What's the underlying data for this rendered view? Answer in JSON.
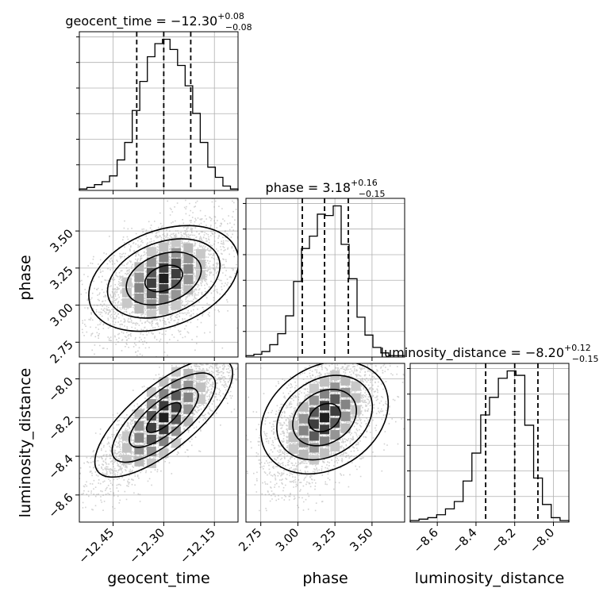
{
  "chart_data": {
    "type": "corner",
    "parameters": [
      {
        "name": "geocent_time",
        "title_prefix": "geocent_time = ",
        "median": "−12.30",
        "err_plus": "+0.08",
        "err_minus": "−0.08",
        "range": [
          -12.55,
          -12.08
        ],
        "ticks": [
          -12.45,
          -12.3,
          -12.15
        ],
        "tick_labels": [
          "−12.45",
          "−12.30",
          "−12.15"
        ],
        "quantiles": [
          -12.38,
          -12.3,
          -12.22
        ],
        "hist": [
          1,
          2,
          4,
          6,
          10,
          21,
          33,
          55,
          75,
          92,
          101,
          104,
          97,
          86,
          72,
          53,
          33,
          16,
          9,
          3,
          1
        ]
      },
      {
        "name": "phase",
        "title_prefix": "phase = ",
        "median": "3.18",
        "err_plus": "+0.16",
        "err_minus": "−0.15",
        "range": [
          2.65,
          3.72
        ],
        "ticks": [
          2.75,
          3.0,
          3.25,
          3.5
        ],
        "tick_labels": [
          "2.75",
          "3.00",
          "3.25",
          "3.50"
        ],
        "quantiles": [
          3.03,
          3.18,
          3.34
        ],
        "hist": [
          1,
          2,
          4,
          9,
          17,
          30,
          55,
          79,
          88,
          104,
          103,
          110,
          82,
          57,
          29,
          16,
          7,
          3,
          1,
          1
        ]
      },
      {
        "name": "luminosity_distance",
        "title_prefix": "luminosity_distance = ",
        "median": "−8.20",
        "err_plus": "+0.12",
        "err_minus": "−0.15",
        "range": [
          -8.74,
          -7.92
        ],
        "ticks": [
          -8.6,
          -8.4,
          -8.2,
          -8.0
        ],
        "tick_labels": [
          "−8.6",
          "−8.4",
          "−8.2",
          "−8.0"
        ],
        "quantiles": [
          -8.35,
          -8.2,
          -8.08
        ],
        "hist": [
          1,
          2,
          3,
          5,
          9,
          14,
          28,
          47,
          73,
          85,
          98,
          103,
          100,
          66,
          30,
          12,
          3,
          1
        ]
      }
    ],
    "correlations": {
      "0,1": 0.45,
      "0,2": 0.85,
      "1,2": 0.55
    },
    "grid": true
  }
}
